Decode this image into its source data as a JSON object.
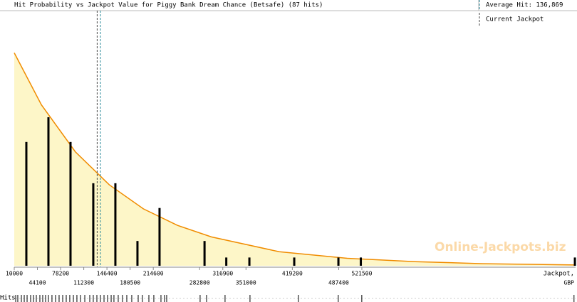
{
  "chart_data": {
    "type": "bar",
    "title": "Hit Probability vs Jackpot Value for Piggy Bank Dream Chance (Betsafe) (87 hits)",
    "x": [
      27800,
      60300,
      92800,
      126300,
      158800,
      191300,
      223800,
      290000,
      322000,
      356000,
      422000,
      487000,
      520000,
      835000
    ],
    "values": [
      15,
      18,
      15,
      10,
      10,
      3,
      7,
      3,
      1,
      1,
      1,
      1,
      1,
      1
    ],
    "color": "#000000",
    "curve": {
      "type": "area",
      "color": "#f08c00",
      "fill": "#fdf6c8",
      "x": [
        10000,
        50000,
        100000,
        150000,
        200000,
        250000,
        300000,
        400000,
        500000,
        600000,
        700000,
        836000
      ],
      "values": [
        25.8,
        19.5,
        13.8,
        9.8,
        6.9,
        4.9,
        3.5,
        1.7,
        0.9,
        0.5,
        0.25,
        0.1
      ]
    },
    "average": {
      "label": "Average Hit: 136,869",
      "value": 136869,
      "color": "#2a8a9a"
    },
    "current": {
      "label": "Current Jackpot",
      "value": 132000,
      "color": "#444444"
    },
    "watermark": "Online-Jackpots.biz",
    "xlim": [
      10000,
      836000
    ],
    "ylim": [
      0,
      31
    ],
    "xticks": [
      10000,
      44100,
      78200,
      112300,
      146400,
      180500,
      214600,
      282800,
      316900,
      351000,
      419200,
      487400,
      521500
    ],
    "x_label_lines": [
      "Jackpot,",
      "GBP"
    ],
    "rug": {
      "label": "Hits",
      "x": [
        12100,
        15200,
        20500,
        24700,
        28900,
        34100,
        38300,
        42500,
        47700,
        51900,
        56100,
        60300,
        65500,
        70800,
        76000,
        81300,
        86500,
        91700,
        97000,
        102200,
        107500,
        113800,
        121100,
        126300,
        131600,
        136800,
        142100,
        147300,
        152600,
        156700,
        163000,
        169300,
        175600,
        182900,
        192400,
        198600,
        208100,
        215400,
        225900,
        231100,
        234300,
        283500,
        293000,
        320200,
        356900,
        428200,
        486800,
        521400,
        833700
      ]
    }
  }
}
